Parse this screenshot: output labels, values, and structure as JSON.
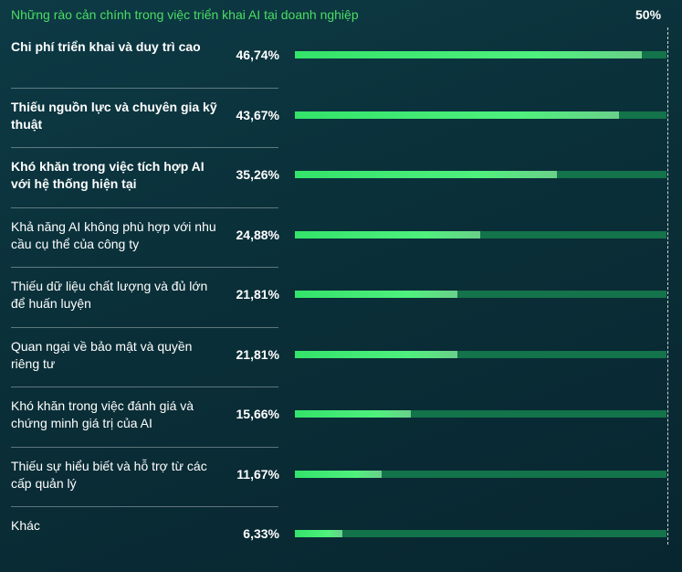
{
  "chart_data": {
    "type": "bar",
    "title": "Những rào cản chính trong việc triển khai AI tại doanh nghiệp",
    "xlim": [
      0,
      50
    ],
    "max_label": "50%",
    "categories": [
      "Chi phí triển khai và duy trì cao",
      "Thiếu nguồn lực và chuyên gia kỹ thuật",
      "Khó khăn trong việc tích hợp AI với hệ thống hiện tại",
      "Khả năng AI không phù hợp với nhu cầu cụ thể của công ty",
      "Thiếu dữ liệu chất lượng và đủ lớn để huấn luyện",
      "Quan ngại về bảo mật và quyền riêng tư",
      "Khó khăn trong việc đánh giá và chứng minh giá trị của AI",
      "Thiếu sự hiểu biết và hỗ trợ từ các cấp quản lý",
      "Khác"
    ],
    "values": [
      46.74,
      43.67,
      35.26,
      24.88,
      21.81,
      21.81,
      15.66,
      11.67,
      6.33
    ],
    "value_labels": [
      "46,74%",
      "43,67%",
      "35,26%",
      "24,88%",
      "21,81%",
      "21,81%",
      "15,66%",
      "11,67%",
      "6,33%"
    ],
    "bold_labels": [
      true,
      true,
      true,
      false,
      false,
      false,
      false,
      false,
      false
    ]
  },
  "colors": {
    "title": "#4ade63",
    "bar_fill": "#3ee870",
    "bar_track": "#13734a",
    "background": "#0b3440"
  }
}
